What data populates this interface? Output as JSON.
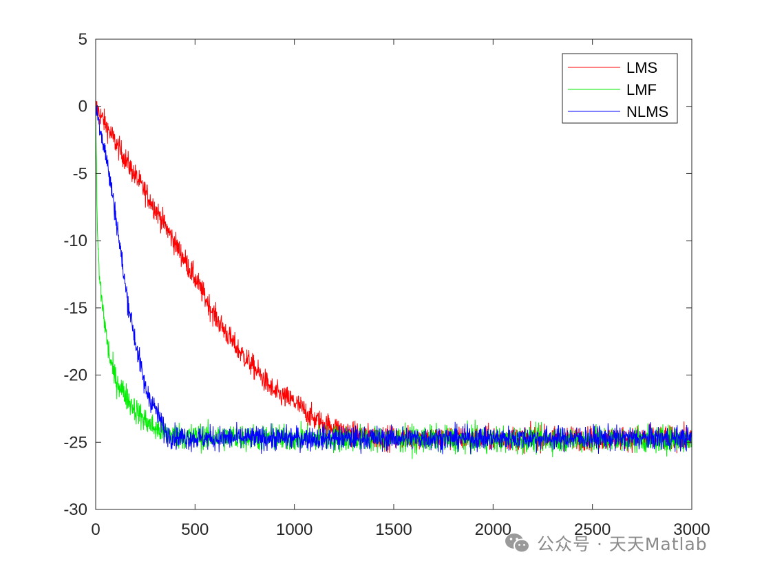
{
  "chart_data": {
    "type": "line",
    "title": "",
    "xlabel": "",
    "ylabel": "",
    "xlim": [
      0,
      3000
    ],
    "ylim": [
      -30,
      5
    ],
    "x_ticks": [
      0,
      500,
      1000,
      1500,
      2000,
      2500,
      3000
    ],
    "y_ticks": [
      5,
      0,
      -5,
      -10,
      -15,
      -20,
      -25,
      -30
    ],
    "x_tick_labels": [
      "0",
      "500",
      "1000",
      "1500",
      "2000",
      "2500",
      "3000"
    ],
    "y_tick_labels": [
      "5",
      "0",
      "-5",
      "-10",
      "-15",
      "-20",
      "-25",
      "-30"
    ],
    "grid": false,
    "legend_position": "top-right",
    "series": [
      {
        "name": "LMS",
        "color": "#ff0000",
        "x": [
          0,
          100,
          200,
          300,
          400,
          500,
          600,
          700,
          800,
          900,
          1000,
          1100,
          1200,
          1300,
          1400,
          1500,
          2000,
          2500,
          3000
        ],
        "values": [
          0,
          -2.7,
          -5.2,
          -7.6,
          -10.2,
          -12.8,
          -15.6,
          -17.8,
          -19.5,
          -21.3,
          -22,
          -23.3,
          -23.9,
          -24.4,
          -24.6,
          -24.7,
          -24.7,
          -24.7,
          -24.7
        ],
        "noise": 0.45
      },
      {
        "name": "LMF",
        "color": "#00ee00",
        "x": [
          0,
          5,
          10,
          20,
          40,
          60,
          80,
          100,
          150,
          200,
          250,
          300,
          350,
          400,
          500,
          1000,
          2000,
          3000
        ],
        "values": [
          0,
          -6,
          -10,
          -13,
          -15.5,
          -17.8,
          -19.3,
          -20.3,
          -21.5,
          -22.6,
          -23.4,
          -24,
          -24.3,
          -24.5,
          -24.6,
          -24.7,
          -24.8,
          -24.8
        ],
        "noise": 0.5
      },
      {
        "name": "NLMS",
        "color": "#0000ff",
        "x": [
          0,
          50,
          100,
          150,
          200,
          250,
          300,
          330,
          350,
          400,
          500,
          1000,
          2000,
          3000
        ],
        "values": [
          0,
          -3.5,
          -8,
          -13.5,
          -17.5,
          -21,
          -22.5,
          -23.5,
          -24.3,
          -24.6,
          -24.7,
          -24.7,
          -24.7,
          -24.7
        ],
        "noise": 0.45
      }
    ]
  },
  "watermark": {
    "text": "公众号 · 天天Matlab",
    "icon": "wechat-icon"
  }
}
